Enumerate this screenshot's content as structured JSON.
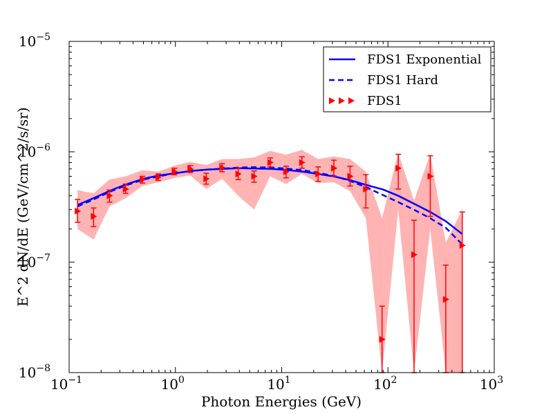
{
  "chart_data": {
    "type": "line",
    "title": "",
    "xlabel": "Photon Energies (GeV)",
    "ylabel": "E^2 dN/dE (GeV/cm^2/s/sr)",
    "xscale": "log",
    "yscale": "log",
    "xlim": [
      0.1,
      1000
    ],
    "ylim": [
      1e-08,
      1e-05
    ],
    "x_ticks": [
      {
        "base": "10",
        "exp": "−1",
        "value": 0.1
      },
      {
        "base": "10",
        "exp": "0",
        "value": 1
      },
      {
        "base": "10",
        "exp": "1",
        "value": 10
      },
      {
        "base": "10",
        "exp": "2",
        "value": 100
      },
      {
        "base": "10",
        "exp": "3",
        "value": 1000
      }
    ],
    "y_ticks": [
      {
        "base": "10",
        "exp": "−8",
        "value": 1e-08
      },
      {
        "base": "10",
        "exp": "−7",
        "value": 1e-07
      },
      {
        "base": "10",
        "exp": "−6",
        "value": 1e-06
      },
      {
        "base": "10",
        "exp": "−5",
        "value": 1e-05
      }
    ],
    "legend_position": "top-right",
    "colors": {
      "model": "#0000ff",
      "points": "#ff0000",
      "band": "#ffb3b3"
    },
    "series": [
      {
        "name": "FDS1 Exponential",
        "style": "solid",
        "x": [
          0.12,
          0.17,
          0.25,
          0.35,
          0.5,
          0.7,
          1.0,
          1.4,
          2.0,
          2.8,
          4.0,
          5.6,
          8.0,
          11,
          16,
          22,
          32,
          45,
          63,
          90,
          125,
          180,
          250,
          350,
          500
        ],
        "y": [
          3.3e-07,
          3.8e-07,
          4.5e-07,
          5.1e-07,
          5.7e-07,
          6.1e-07,
          6.4e-07,
          6.7e-07,
          6.9e-07,
          7e-07,
          7.1e-07,
          7.05e-07,
          7e-07,
          6.85e-07,
          6.6e-07,
          6.3e-07,
          5.95e-07,
          5.5e-07,
          5e-07,
          4.55e-07,
          4e-07,
          3.35e-07,
          2.85e-07,
          2.35e-07,
          1.8e-07
        ]
      },
      {
        "name": "FDS1 Hard",
        "style": "dashed",
        "x": [
          0.12,
          0.17,
          0.25,
          0.35,
          0.5,
          0.7,
          1.0,
          1.4,
          2.0,
          2.8,
          4.0,
          5.6,
          8.0,
          11,
          16,
          22,
          32,
          45,
          63,
          90,
          125,
          180,
          250,
          350,
          500
        ],
        "y": [
          3.2e-07,
          3.7e-07,
          4.4e-07,
          5e-07,
          5.6e-07,
          6e-07,
          6.4e-07,
          6.7e-07,
          6.9e-07,
          7.05e-07,
          7.2e-07,
          7.25e-07,
          7.2e-07,
          7.05e-07,
          6.8e-07,
          6.45e-07,
          6e-07,
          5.4e-07,
          4.75e-07,
          4.05e-07,
          3.5e-07,
          2.95e-07,
          2.5e-07,
          2.05e-07,
          1.45e-07
        ]
      },
      {
        "name": "FDS1",
        "style": "points",
        "points": [
          {
            "x": 0.12,
            "y": 2.9e-07,
            "lo": 2.3e-07,
            "hi": 3.7e-07
          },
          {
            "x": 0.17,
            "y": 2.6e-07,
            "lo": 2.1e-07,
            "hi": 3.1e-07
          },
          {
            "x": 0.24,
            "y": 4e-07,
            "lo": 3.5e-07,
            "hi": 4.5e-07
          },
          {
            "x": 0.34,
            "y": 4.6e-07,
            "lo": 4.2e-07,
            "hi": 5.1e-07
          },
          {
            "x": 0.49,
            "y": 5.6e-07,
            "lo": 5.2e-07,
            "hi": 6e-07
          },
          {
            "x": 0.69,
            "y": 5.9e-07,
            "lo": 5.5e-07,
            "hi": 6.3e-07
          },
          {
            "x": 0.98,
            "y": 6.6e-07,
            "lo": 6.2e-07,
            "hi": 7.1e-07
          },
          {
            "x": 1.38,
            "y": 7e-07,
            "lo": 6.5e-07,
            "hi": 7.5e-07
          },
          {
            "x": 1.95,
            "y": 5.7e-07,
            "lo": 5.1e-07,
            "hi": 6.4e-07
          },
          {
            "x": 2.75,
            "y": 7.2e-07,
            "lo": 6.6e-07,
            "hi": 7.8e-07
          },
          {
            "x": 3.9,
            "y": 6.3e-07,
            "lo": 5.6e-07,
            "hi": 7.1e-07
          },
          {
            "x": 5.5,
            "y": 6e-07,
            "lo": 5.3e-07,
            "hi": 6.7e-07
          },
          {
            "x": 7.8,
            "y": 8e-07,
            "lo": 7.3e-07,
            "hi": 8.8e-07
          },
          {
            "x": 11,
            "y": 6.6e-07,
            "lo": 5.8e-07,
            "hi": 7.4e-07
          },
          {
            "x": 15.5,
            "y": 8e-07,
            "lo": 7.1e-07,
            "hi": 9e-07
          },
          {
            "x": 22,
            "y": 6.3e-07,
            "lo": 5.4e-07,
            "hi": 7.3e-07
          },
          {
            "x": 31,
            "y": 7.1e-07,
            "lo": 6e-07,
            "hi": 8.4e-07
          },
          {
            "x": 44,
            "y": 6e-07,
            "lo": 4.9e-07,
            "hi": 7.4e-07
          },
          {
            "x": 62,
            "y": 4.6e-07,
            "lo": 3.1e-07,
            "hi": 6.2e-07
          },
          {
            "x": 88,
            "y": 2e-08,
            "lo": 1e-08,
            "hi": 4e-08
          },
          {
            "x": 125,
            "y": 7.1e-07,
            "lo": 4.6e-07,
            "hi": 9.5e-07
          },
          {
            "x": 176,
            "y": 1.17e-07,
            "lo": 1e-08,
            "hi": 2.4e-07
          },
          {
            "x": 250,
            "y": 6e-07,
            "lo": 2.6e-07,
            "hi": 9.2e-07
          },
          {
            "x": 350,
            "y": 4.6e-08,
            "lo": 1e-08,
            "hi": 9.4e-08
          },
          {
            "x": 500,
            "y": 1.42e-07,
            "lo": 1e-08,
            "hi": 2.85e-07
          }
        ]
      }
    ],
    "systematic_band": {
      "x": [
        0.12,
        0.17,
        0.24,
        0.34,
        0.49,
        0.69,
        0.98,
        1.38,
        1.95,
        2.75,
        3.9,
        5.5,
        7.8,
        11,
        15.5,
        22,
        31,
        44,
        62,
        88,
        125,
        176,
        250,
        350,
        500
      ],
      "lower": [
        2e-07,
        1.6e-07,
        3.2e-07,
        3.8e-07,
        4.9e-07,
        5.3e-07,
        5.8e-07,
        6.1e-07,
        4.6e-07,
        5.7e-07,
        4e-07,
        3e-07,
        6e-07,
        5.1e-07,
        6.3e-07,
        5.2e-07,
        5.3e-07,
        4.4e-07,
        2.5e-07,
        1e-08,
        3e-07,
        1e-08,
        2e-07,
        1e-08,
        1e-08
      ],
      "upper": [
        4.5e-07,
        4.2e-07,
        5.6e-07,
        6e-07,
        6.8e-07,
        6.6e-07,
        7.5e-07,
        8.1e-07,
        7.6e-07,
        8.6e-07,
        8.6e-07,
        8.9e-07,
        1.02e-06,
        9.4e-07,
        1.04e-06,
        8.6e-07,
        9.1e-07,
        8.6e-07,
        6.6e-07,
        2.5e-07,
        9.8e-07,
        3.6e-07,
        9.6e-07,
        1.5e-07,
        3e-07
      ]
    }
  }
}
